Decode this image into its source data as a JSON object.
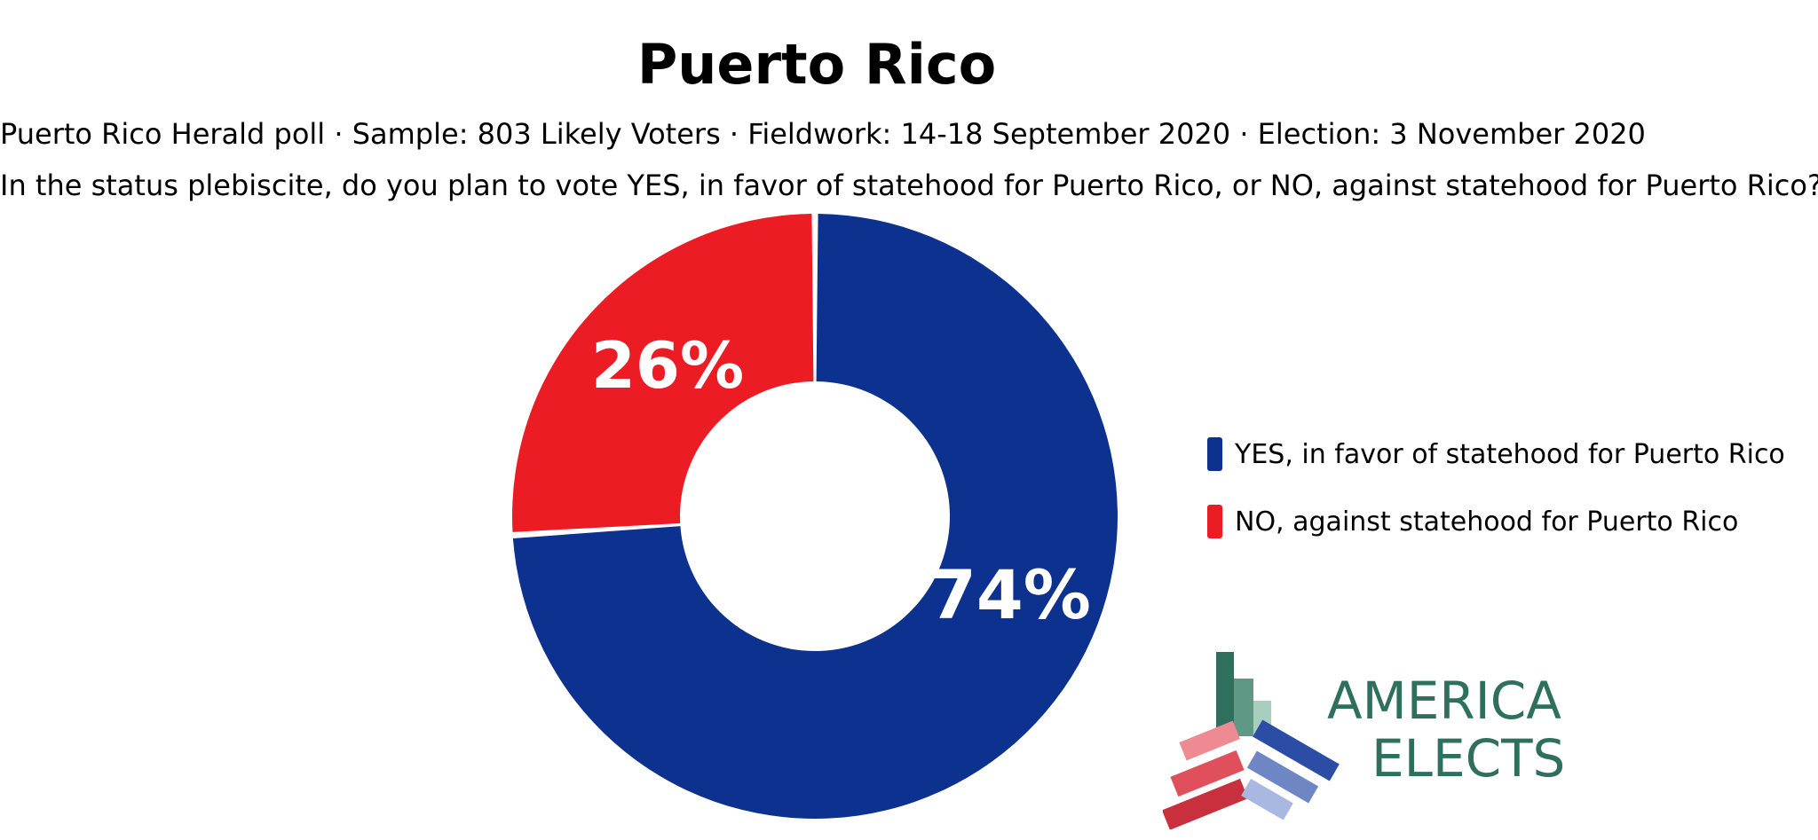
{
  "chart_data": {
    "type": "pie",
    "title": "Puerto Rico",
    "subtitle": "Puerto Rico Herald poll · Sample: 803 Likely Voters · Fieldwork: 14-18 September 2020 · Election: 3 November 2020",
    "question": "In the status plebiscite, do you plan to vote YES, in favor of statehood for Puerto Rico, or NO, against statehood for Puerto Rico?",
    "categories": [
      "YES, in favor of statehood for Puerto Rico",
      "NO, against statehood for Puerto Rico"
    ],
    "values": [
      74,
      26
    ],
    "labels": [
      "74%",
      "26%"
    ],
    "colors": [
      "#0C318E",
      "#EC1C24"
    ],
    "donut": true,
    "legend_position": "right"
  },
  "logo": {
    "line1": "AMERICA",
    "line2": "ELECTS"
  }
}
